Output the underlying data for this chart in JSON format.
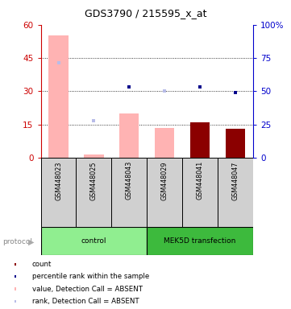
{
  "title": "GDS3790 / 215595_x_at",
  "samples": [
    "GSM448023",
    "GSM448025",
    "GSM448043",
    "GSM448029",
    "GSM448041",
    "GSM448047"
  ],
  "groups": [
    {
      "name": "control",
      "indices": [
        0,
        1,
        2
      ],
      "color": "#90ee90"
    },
    {
      "name": "MEK5D transfection",
      "indices": [
        3,
        4,
        5
      ],
      "color": "#3dba3d"
    }
  ],
  "bar_values": [
    55,
    1.5,
    20,
    13.5,
    16,
    13
  ],
  "bar_absent": [
    true,
    true,
    true,
    true,
    false,
    false
  ],
  "scatter_rank_values_right": [
    71.5,
    28.0,
    53.3,
    50.0,
    53.3,
    49.2
  ],
  "scatter_rank_absent": [
    true,
    true,
    false,
    true,
    false,
    false
  ],
  "ylim_left": [
    0,
    60
  ],
  "ylim_right": [
    0,
    100
  ],
  "yticks_left": [
    0,
    15,
    30,
    45,
    60
  ],
  "yticks_right": [
    0,
    25,
    50,
    75,
    100
  ],
  "yticklabels_left": [
    "0",
    "15",
    "30",
    "45",
    "60"
  ],
  "yticklabels_right": [
    "0",
    "25",
    "50",
    "75",
    "100%"
  ],
  "grid_lines": [
    15,
    30,
    45
  ],
  "color_bar_absent": "#ffb3b3",
  "color_bar_present": "#8b0000",
  "color_rank_absent": "#b8bce8",
  "color_rank_present": "#00008b",
  "color_left_axis": "#cc0000",
  "color_right_axis": "#0000cc",
  "cell_color": "#d0d0d0",
  "protocol_label": "protocol",
  "legend_items": [
    {
      "label": "count",
      "color": "#8b0000"
    },
    {
      "label": "percentile rank within the sample",
      "color": "#00008b"
    },
    {
      "label": "value, Detection Call = ABSENT",
      "color": "#ffb3b3"
    },
    {
      "label": "rank, Detection Call = ABSENT",
      "color": "#b8bce8"
    }
  ],
  "figsize": [
    3.61,
    3.84
  ],
  "dpi": 100
}
